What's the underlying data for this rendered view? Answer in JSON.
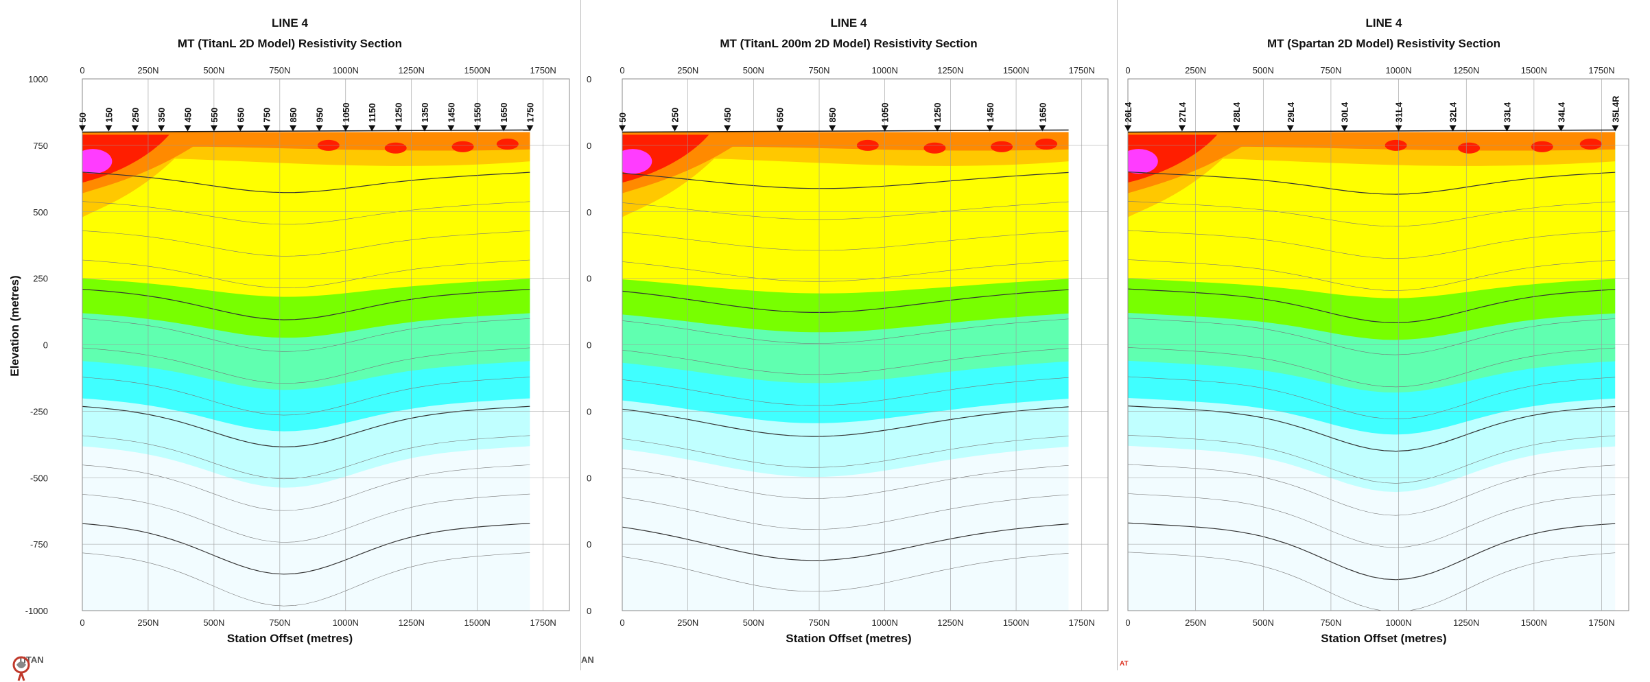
{
  "colors": {
    "magenta": "#ff3cff",
    "red": "#ff1e00",
    "orange": "#ff8a00",
    "gold": "#ffc800",
    "yellow": "#ffff00",
    "green": "#78ff00",
    "seafoam": "#60ffb0",
    "cyan": "#40ffff",
    "lightcyan": "#c0ffff",
    "palest": "#f2fcff"
  },
  "chart_data": [
    {
      "type": "heatmap",
      "title": "LINE 4",
      "subtitle": "MT (TitanL 2D Model) Resistivity Section",
      "xlabel": "Station Offset (metres)",
      "ylabel": "Elevation (metres)",
      "xlim": [
        0,
        1850
      ],
      "ylim": [
        -1000,
        1000
      ],
      "x_ticks": [
        "0",
        "250N",
        "500N",
        "750N",
        "1000N",
        "1250N",
        "1500N",
        "1750N"
      ],
      "y_ticks": [
        "1000",
        "750",
        "500",
        "250",
        "0",
        "-250",
        "-500",
        "-750",
        "-1000"
      ],
      "stations": [
        "50",
        "150",
        "250",
        "350",
        "450",
        "550",
        "650",
        "750",
        "850",
        "950",
        "1050",
        "1150",
        "1250",
        "1350",
        "1450",
        "1550",
        "1650",
        "1750"
      ],
      "station_x": [
        0,
        100,
        200,
        300,
        400,
        500,
        600,
        700,
        800,
        900,
        1000,
        1100,
        1200,
        1300,
        1400,
        1500,
        1600,
        1700
      ],
      "section_x": [
        0,
        1700
      ],
      "grid": true
    },
    {
      "type": "heatmap",
      "title": "LINE 4",
      "subtitle": "MT (TitanL 200m 2D Model) Resistivity Section",
      "xlabel": "Station Offset (metres)",
      "ylabel": "",
      "xlim": [
        0,
        1850
      ],
      "ylim": [
        -1000,
        1000
      ],
      "x_ticks": [
        "0",
        "250N",
        "500N",
        "750N",
        "1000N",
        "1250N",
        "1500N",
        "1750N"
      ],
      "y_ticks": [
        "0",
        "0",
        "0",
        "0",
        "0",
        "0",
        "0",
        "0",
        "0"
      ],
      "stations": [
        "50",
        "250",
        "450",
        "650",
        "850",
        "1050",
        "1250",
        "1450",
        "1650"
      ],
      "station_x": [
        0,
        200,
        400,
        600,
        800,
        1000,
        1200,
        1400,
        1600
      ],
      "section_x": [
        0,
        1700
      ],
      "grid": true
    },
    {
      "type": "heatmap",
      "title": "LINE 4",
      "subtitle": "MT (Spartan 2D Model) Resistivity Section",
      "xlabel": "Station Offset (metres)",
      "ylabel": "",
      "xlim": [
        0,
        1850
      ],
      "ylim": [
        -1000,
        1000
      ],
      "x_ticks": [
        "0",
        "250N",
        "500N",
        "750N",
        "1000N",
        "1250N",
        "1500N",
        "1750N"
      ],
      "y_ticks": [],
      "stations": [
        "26L4",
        "27L4",
        "28L4",
        "29L4",
        "30L4",
        "31L4",
        "32L4",
        "33L4",
        "34L4",
        "35L4R"
      ],
      "station_x": [
        0,
        200,
        400,
        600,
        800,
        1000,
        1200,
        1400,
        1600,
        1800
      ],
      "section_x": [
        0,
        1800
      ],
      "grid": true
    }
  ],
  "logo_text": "TITAN",
  "logo_text_partial": "AN",
  "corner_mark": "AT"
}
